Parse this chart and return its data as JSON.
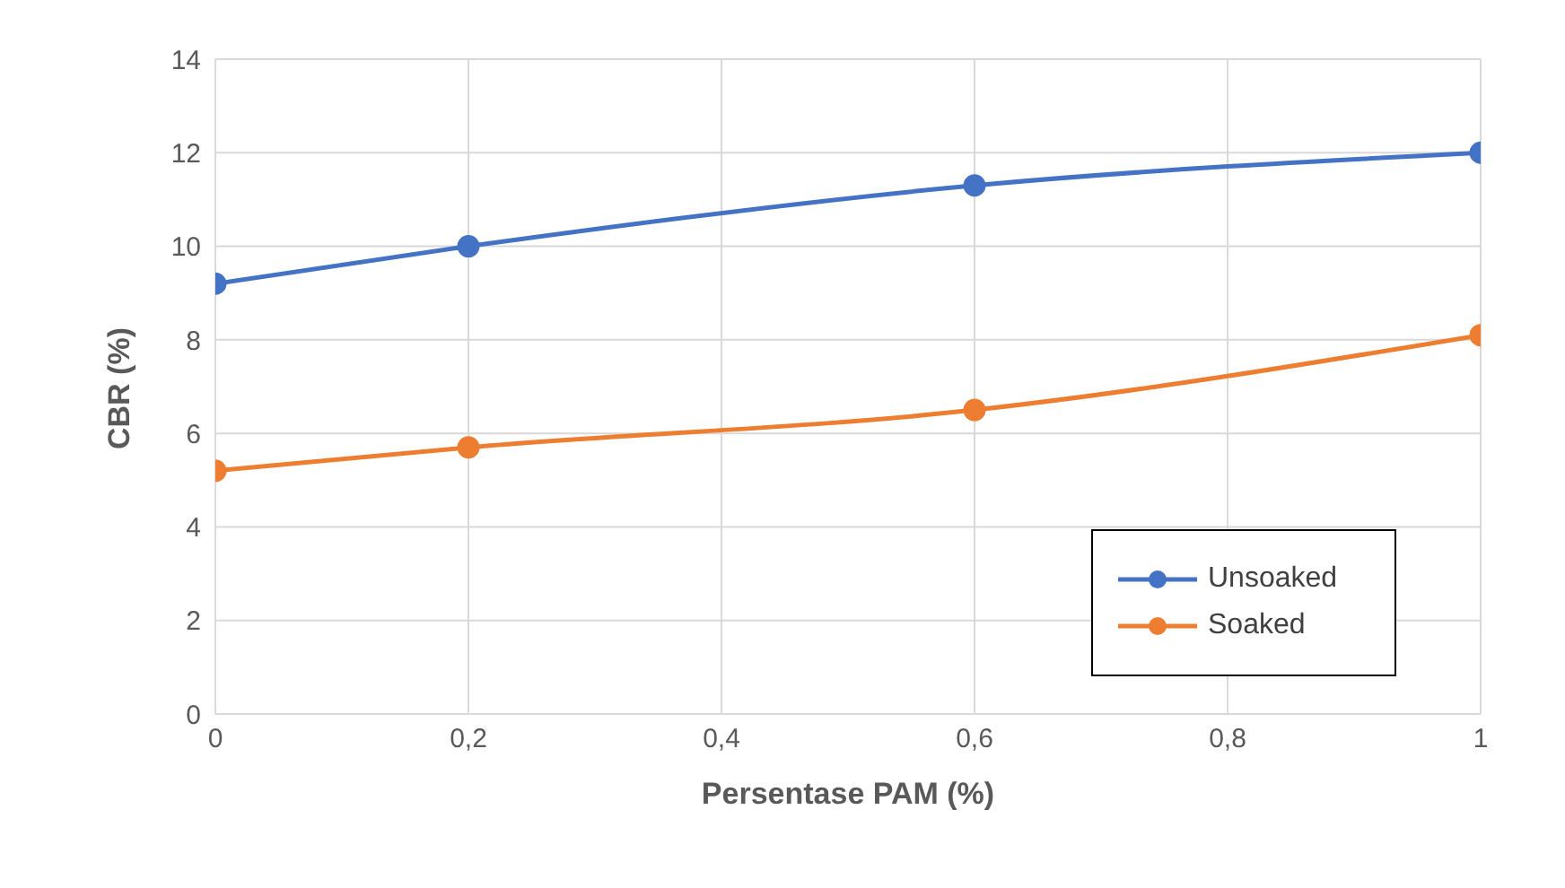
{
  "chart_data": {
    "type": "line",
    "xlabel": "Persentase PAM (%)",
    "ylabel": "CBR (%)",
    "x": [
      0,
      0.2,
      0.6,
      1
    ],
    "series": [
      {
        "name": "Unsoaked",
        "color": "#4472c4",
        "values": [
          9.2,
          10.0,
          11.3,
          12.0
        ]
      },
      {
        "name": "Soaked",
        "color": "#ed7d31",
        "values": [
          5.2,
          5.7,
          6.5,
          8.1
        ]
      }
    ],
    "xlim": [
      0,
      1
    ],
    "xticks": [
      0,
      {
        "value": 0.2,
        "label": "0,2"
      },
      {
        "value": 0.4,
        "label": "0,4"
      },
      {
        "value": 0.6,
        "label": "0,6"
      },
      {
        "value": 0.8,
        "label": "0,8"
      },
      1
    ],
    "ylim": [
      0,
      14
    ],
    "yticks": [
      0,
      2,
      4,
      6,
      8,
      10,
      12,
      14
    ],
    "grid": true,
    "legend": "bottom right",
    "marker": "circle",
    "line_style": "solid"
  }
}
